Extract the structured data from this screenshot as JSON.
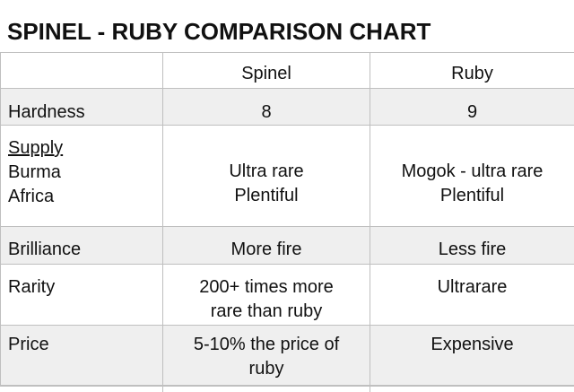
{
  "title": "SPINEL - RUBY COMPARISON CHART",
  "header": {
    "blank": "",
    "col1": "Spinel",
    "col2": "Ruby"
  },
  "rows": [
    {
      "label": "Hardness",
      "spinel": "8",
      "ruby": "9"
    },
    {
      "label": "Supply",
      "sublabels": [
        "Burma",
        "Africa"
      ],
      "spinel": [
        "Ultra rare",
        "Plentiful"
      ],
      "ruby": [
        "Mogok - ultra rare",
        "Plentiful"
      ]
    },
    {
      "label": "Brilliance",
      "spinel": "More fire",
      "ruby": "Less fire"
    },
    {
      "label": "Rarity",
      "spinel": [
        "200+ times more",
        "rare than ruby"
      ],
      "ruby": "Ultrarare"
    },
    {
      "label": "Price",
      "spinel": [
        "5-10% the price of",
        "ruby"
      ],
      "ruby": "Expensive"
    }
  ]
}
